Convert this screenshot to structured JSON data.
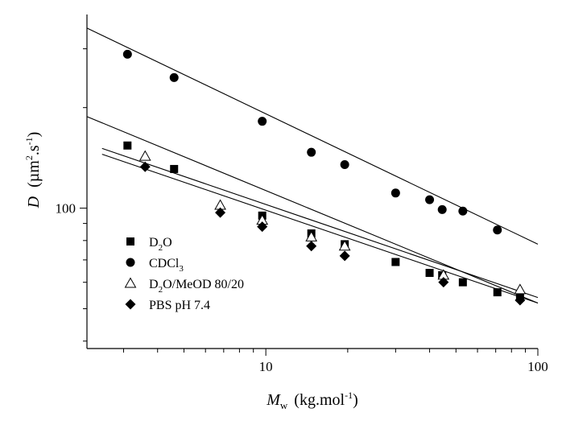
{
  "chart_data": {
    "type": "scatter",
    "x_scale": "log",
    "y_scale": "log",
    "xlim": [
      2.2,
      100
    ],
    "ylim": [
      38,
      380
    ],
    "x_ticks": [
      10,
      100
    ],
    "x_tick_labels": [
      "10",
      "100"
    ],
    "y_ticks": [
      100
    ],
    "y_tick_labels": [
      "100"
    ],
    "xlabel": {
      "italic": "M",
      "subscript": "w",
      "text": "(kg.mol",
      "superscript": "-1",
      "close": ")"
    },
    "ylabel": {
      "italic": "D",
      "text": "(µm",
      "superscript": "2",
      "text2": ".s",
      "superscript2": "-1",
      "close": ")"
    },
    "grid": false,
    "legend_position": "bottom-left",
    "series": [
      {
        "legend": {
          "text": "D",
          "subscript": "2",
          "text2": "O"
        },
        "marker": "square-filled",
        "x": [
          3.1,
          4.6,
          9.7,
          14.7,
          19.5,
          30,
          40,
          44.5,
          53,
          71,
          86
        ],
        "y": [
          154,
          131,
          95,
          84,
          78,
          69,
          64,
          63,
          60,
          56,
          54
        ],
        "fit": {
          "x": [
            2.2,
            100
          ],
          "y": [
            188,
            52
          ]
        }
      },
      {
        "legend": {
          "text": "CDCl",
          "subscript": "3",
          "text2": ""
        },
        "marker": "circle-filled",
        "x": [
          3.1,
          4.6,
          9.7,
          14.7,
          19.5,
          30,
          40,
          44.5,
          53,
          71
        ],
        "y": [
          289,
          246,
          182,
          147,
          135,
          111,
          106,
          99,
          98,
          86
        ],
        "fit": {
          "x": [
            2.2,
            100
          ],
          "y": [
            346,
            78
          ]
        }
      },
      {
        "legend": {
          "text": "D",
          "subscript": "2",
          "text2": "O/MeOD 80/20"
        },
        "marker": "triangle-open",
        "x": [
          3.6,
          6.8,
          9.7,
          14.7,
          19.5,
          45,
          86
        ],
        "y": [
          143,
          102,
          92,
          82,
          77,
          63,
          57
        ],
        "fit": {
          "x": [
            2.5,
            100
          ],
          "y": [
            151,
            54
          ]
        }
      },
      {
        "legend": {
          "text": "PBS pH 7.4",
          "subscript": "",
          "text2": ""
        },
        "marker": "diamond-filled",
        "x": [
          3.6,
          6.8,
          9.7,
          14.7,
          19.5,
          45,
          86
        ],
        "y": [
          133,
          97,
          88,
          77,
          72,
          60,
          53
        ],
        "fit": {
          "x": [
            2.5,
            100
          ],
          "y": [
            145,
            52
          ]
        }
      }
    ]
  }
}
